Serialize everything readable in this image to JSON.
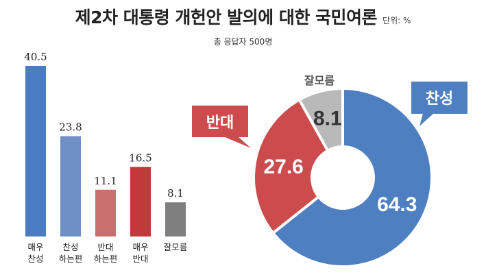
{
  "title": "제2차 대통령 개헌안 발의에 대한 국민여론",
  "unit": "단위: %",
  "respondents": "총 응답자 500명",
  "chart_data": [
    {
      "type": "bar",
      "categories": [
        [
          "매우",
          "찬성"
        ],
        [
          "찬성",
          "하는편"
        ],
        [
          "반대",
          "하는편"
        ],
        [
          "매우",
          "반대"
        ],
        [
          "잘모름"
        ]
      ],
      "values": [
        40.5,
        23.8,
        11.1,
        16.5,
        8.1
      ],
      "value_labels": [
        "40.5",
        "23.8",
        "11.1",
        "16.5",
        "8.1"
      ],
      "colors": [
        "#4a7cc2",
        "#6f90c6",
        "#c9706e",
        "#c0393b",
        "#7f7f7f"
      ],
      "ylim": [
        0,
        40.5
      ],
      "grid": false
    },
    {
      "type": "pie",
      "donut": true,
      "labels": [
        "찬성",
        "반대",
        "잘모름"
      ],
      "values": [
        64.3,
        27.6,
        8.1
      ],
      "value_labels": [
        "64.3",
        "27.6",
        "8.1"
      ],
      "colors": [
        "#4e7fc0",
        "#cc4c4e",
        "#b9b9b9"
      ],
      "value_label_colors": [
        "#ffffff",
        "#ffffff",
        "#333333"
      ]
    }
  ]
}
